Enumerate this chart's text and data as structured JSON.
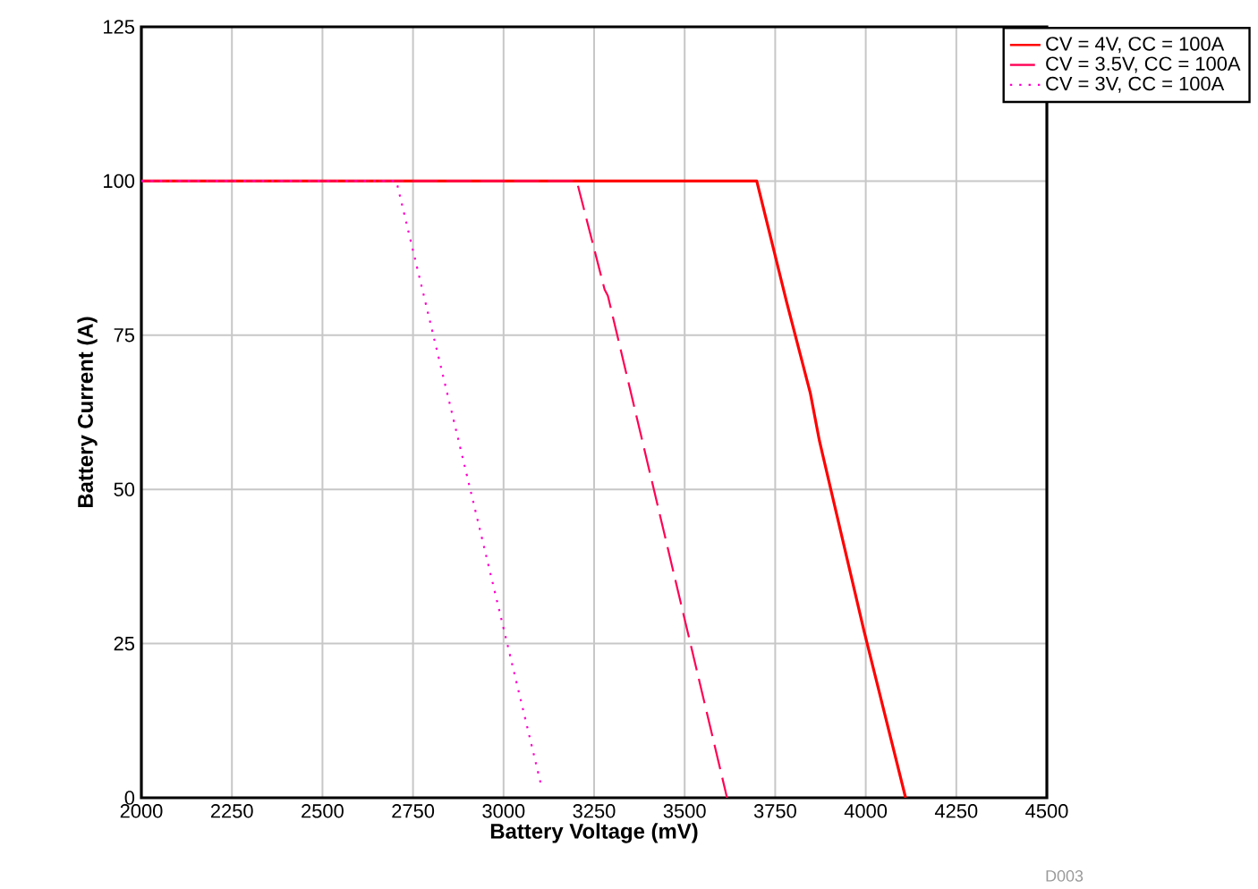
{
  "chart_data": {
    "type": "line",
    "xlabel": "Battery Voltage (mV)",
    "ylabel": "Battery Current (A)",
    "xlim": [
      2000,
      4500
    ],
    "ylim": [
      0,
      125
    ],
    "xticks": [
      2000,
      2250,
      2500,
      2750,
      3000,
      3250,
      3500,
      3750,
      4000,
      4250,
      4500
    ],
    "yticks": [
      0,
      25,
      50,
      75,
      100,
      125
    ],
    "grid": true,
    "legend": "top right",
    "annotations": [
      "D003"
    ],
    "series": [
      {
        "name": "CV = 4V, CC = 100A",
        "color": "#ff0000",
        "line_style": "solid",
        "x": [
          2000,
          3699,
          3781,
          3847,
          3872,
          3995,
          4110
        ],
        "values": [
          100,
          100,
          80.5,
          65.6,
          57.9,
          27.1,
          0
        ]
      },
      {
        "name": "CV = 3.5V, CC = 100A",
        "color": "#ff0055",
        "line_style": "dashed",
        "x": [
          2000,
          3202,
          3279,
          3288,
          3617
        ],
        "values": [
          100,
          100,
          82.4,
          81.4,
          0
        ]
      },
      {
        "name": "CV = 3V, CC = 100A",
        "color": "#ff00cc",
        "line_style": "dotted",
        "x": [
          2000,
          2704,
          3104
        ],
        "values": [
          100,
          100,
          2
        ]
      }
    ]
  }
}
